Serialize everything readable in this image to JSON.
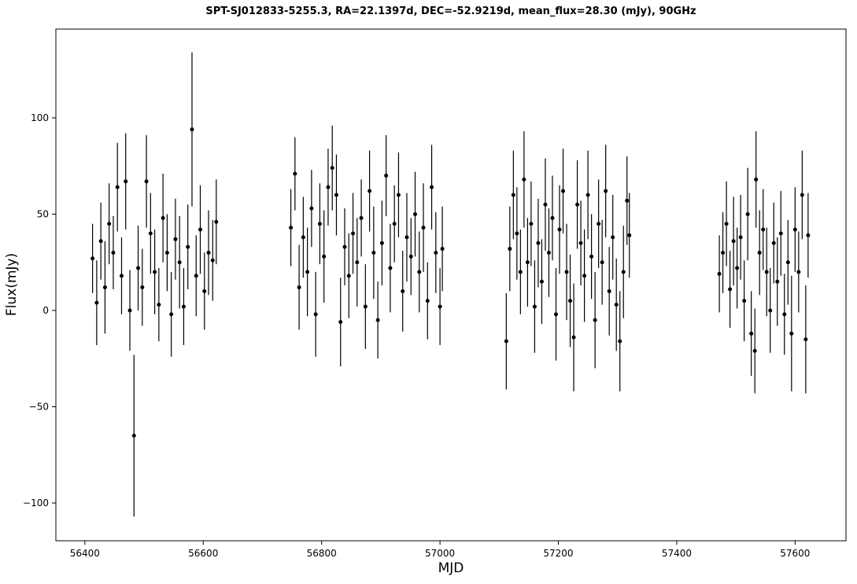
{
  "chart_data": {
    "type": "errorbar",
    "title": "SPT-SJ012833-5255.3, RA=22.1397d, DEC=-52.9219d, mean_flux=28.30 (mJy), 90GHz",
    "xlabel": "MJD",
    "ylabel": "Flux(mJy)",
    "xlim": [
      56351,
      57686
    ],
    "ylim": [
      -119.6,
      146.1
    ],
    "xticks": [
      56400,
      56600,
      56800,
      57000,
      57200,
      57400,
      57600
    ],
    "yticks": [
      {
        "value": -100,
        "label": "−100"
      },
      {
        "value": -50,
        "label": "−50"
      },
      0,
      50,
      100
    ],
    "series": [
      {
        "color": "#000000",
        "x": [
          56413,
          56420,
          56427,
          56434,
          56441,
          56448,
          56455,
          56462,
          56469,
          56476,
          56483,
          56490,
          56497,
          56504,
          56511,
          56518,
          56525,
          56532,
          56539,
          56546,
          56553,
          56560,
          56567,
          56574,
          56581,
          56588,
          56595,
          56602,
          56609,
          56616,
          56622,
          56748,
          56755,
          56762,
          56769,
          56776,
          56783,
          56790,
          56797,
          56804,
          56811,
          56818,
          56825,
          56832,
          56839,
          56846,
          56853,
          56860,
          56867,
          56874,
          56881,
          56888,
          56895,
          56902,
          56909,
          56916,
          56923,
          56930,
          56937,
          56944,
          56951,
          56958,
          56965,
          56972,
          56979,
          56986,
          56993,
          57000,
          57004,
          57112,
          57118,
          57124,
          57130,
          57136,
          57142,
          57148,
          57154,
          57160,
          57166,
          57172,
          57178,
          57184,
          57190,
          57196,
          57202,
          57208,
          57214,
          57220,
          57226,
          57232,
          57238,
          57244,
          57250,
          57256,
          57262,
          57268,
          57274,
          57280,
          57286,
          57292,
          57298,
          57304,
          57310,
          57316,
          57320,
          57472,
          57478,
          57484,
          57490,
          57496,
          57502,
          57508,
          57514,
          57520,
          57526,
          57532,
          57534,
          57540,
          57546,
          57552,
          57558,
          57564,
          57570,
          57576,
          57582,
          57588,
          57594,
          57600,
          57606,
          57612,
          57618,
          57622
        ],
        "values": [
          27,
          4,
          36,
          12,
          45,
          30,
          64,
          18,
          67,
          0,
          -65,
          22,
          12,
          67,
          40,
          20,
          3,
          48,
          30,
          -2,
          37,
          25,
          2,
          33,
          94,
          18,
          42,
          10,
          30,
          26,
          46,
          43,
          71,
          12,
          38,
          20,
          53,
          -2,
          45,
          28,
          64,
          74,
          60,
          -6,
          33,
          18,
          40,
          25,
          48,
          2,
          62,
          30,
          -5,
          35,
          70,
          22,
          45,
          60,
          10,
          38,
          28,
          50,
          20,
          43,
          5,
          64,
          30,
          2,
          32,
          -16,
          32,
          60,
          40,
          20,
          68,
          25,
          45,
          2,
          35,
          15,
          55,
          30,
          48,
          -2,
          42,
          62,
          20,
          5,
          -14,
          55,
          35,
          18,
          60,
          28,
          -5,
          45,
          25,
          62,
          10,
          38,
          3,
          -16,
          20,
          57,
          39,
          19,
          30,
          45,
          11,
          36,
          22,
          38,
          5,
          50,
          -12,
          -21,
          68,
          30,
          42,
          20,
          0,
          35,
          15,
          40,
          -2,
          25,
          -12,
          42,
          20,
          60,
          -15,
          39
        ],
        "errors": [
          18,
          22,
          20,
          24,
          21,
          19,
          23,
          20,
          25,
          21,
          42,
          22,
          20,
          24,
          21,
          22,
          19,
          23,
          20,
          22,
          21,
          24,
          20,
          22,
          40,
          21,
          23,
          20,
          22,
          21,
          22,
          20,
          19,
          22,
          21,
          23,
          20,
          22,
          21,
          24,
          20,
          22,
          21,
          23,
          20,
          22,
          21,
          23,
          20,
          22,
          21,
          24,
          20,
          22,
          21,
          23,
          20,
          22,
          21,
          23,
          20,
          22,
          21,
          23,
          20,
          22,
          21,
          20,
          22,
          25,
          22,
          23,
          24,
          22,
          25,
          23,
          22,
          24,
          23,
          22,
          24,
          23,
          22,
          24,
          23,
          22,
          25,
          24,
          28,
          23,
          22,
          24,
          23,
          22,
          25,
          23,
          22,
          24,
          23,
          22,
          24,
          26,
          24,
          23,
          22,
          20,
          21,
          22,
          20,
          23,
          21,
          22,
          21,
          24,
          22,
          22,
          25,
          22,
          21,
          23,
          22,
          21,
          23,
          22,
          21,
          22,
          30,
          22,
          21,
          23,
          28,
          22
        ]
      }
    ]
  }
}
